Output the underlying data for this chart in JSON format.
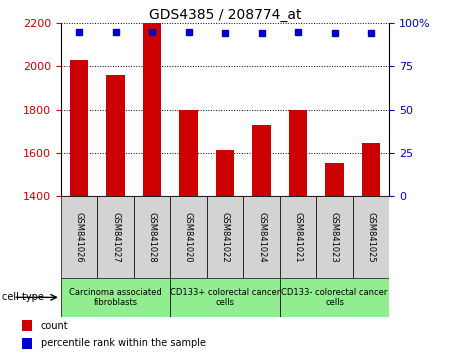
{
  "title": "GDS4385 / 208774_at",
  "samples": [
    "GSM841026",
    "GSM841027",
    "GSM841028",
    "GSM841020",
    "GSM841022",
    "GSM841024",
    "GSM841021",
    "GSM841023",
    "GSM841025"
  ],
  "counts": [
    2030,
    1960,
    2200,
    1800,
    1615,
    1730,
    1800,
    1555,
    1645
  ],
  "percentile_ranks": [
    95,
    95,
    95,
    95,
    94,
    94,
    95,
    94,
    94
  ],
  "ylim_left": [
    1400,
    2200
  ],
  "ylim_right": [
    0,
    100
  ],
  "yticks_left": [
    1400,
    1600,
    1800,
    2000,
    2200
  ],
  "yticks_right": [
    0,
    25,
    50,
    75,
    100
  ],
  "cell_type_groups": [
    {
      "label": "Carcinoma associated\nfibroblasts",
      "start": 0,
      "end": 3,
      "color": "#90EE90"
    },
    {
      "label": "CD133+ colorectal cancer\ncells",
      "start": 3,
      "end": 6,
      "color": "#90EE90"
    },
    {
      "label": "CD133- colorectal cancer\ncells",
      "start": 6,
      "end": 9,
      "color": "#90EE90"
    }
  ],
  "bar_color": "#cc0000",
  "dot_color": "#0000cc",
  "background_color": "#ffffff",
  "tick_area_color": "#d3d3d3",
  "cell_type_label": "cell type",
  "legend_count_label": "count",
  "legend_percentile_label": "percentile rank within the sample",
  "left_tick_color": "#cc0000",
  "right_tick_color": "#0000cc",
  "grid_color": "#000000",
  "bar_width": 0.5,
  "title_fontsize": 10,
  "tick_fontsize": 8,
  "sample_fontsize": 6,
  "group_fontsize": 6,
  "legend_fontsize": 7,
  "cell_type_fontsize": 7
}
